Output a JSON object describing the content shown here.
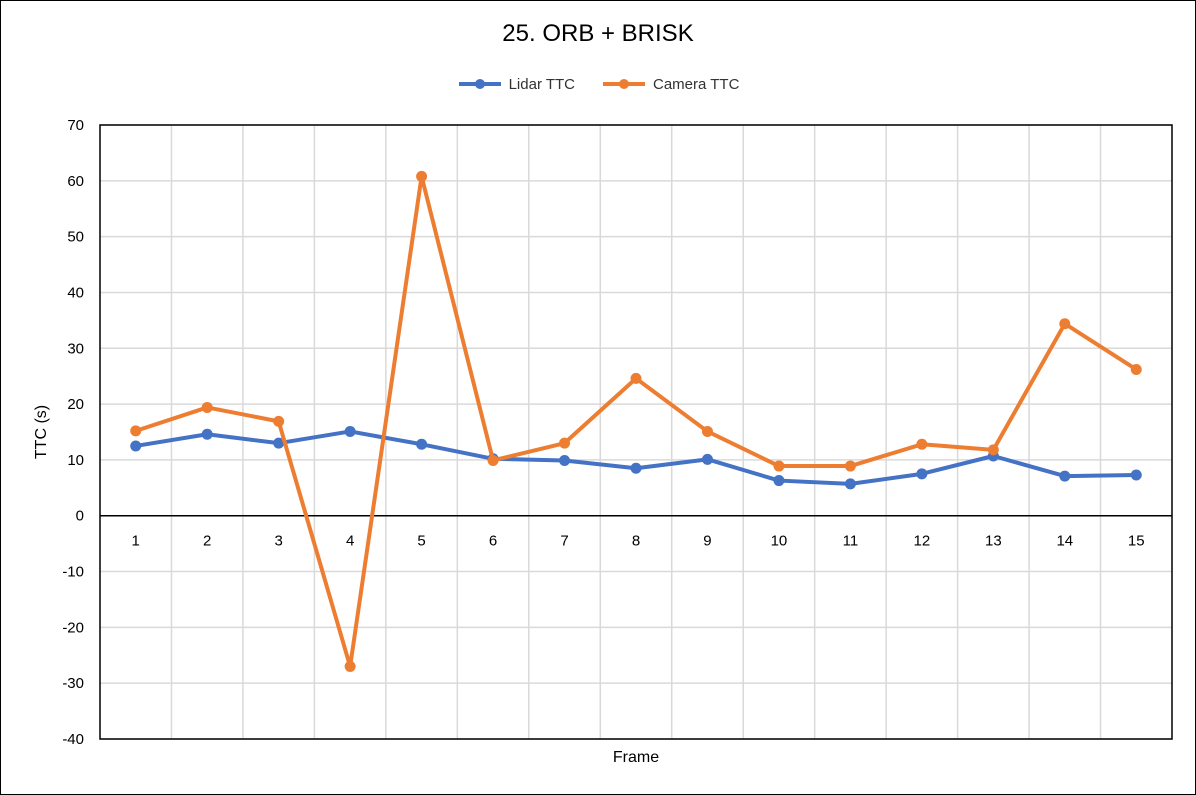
{
  "chart_data": {
    "type": "line",
    "title": "25. ORB + BRISK",
    "xlabel": "Frame",
    "ylabel": "TTC (s)",
    "ylim": [
      -40,
      70
    ],
    "y_ticks": [
      70,
      60,
      50,
      40,
      30,
      20,
      10,
      0,
      -10,
      -20,
      -30,
      -40
    ],
    "categories": [
      "1",
      "2",
      "3",
      "4",
      "5",
      "6",
      "7",
      "8",
      "9",
      "10",
      "11",
      "12",
      "13",
      "14",
      "15"
    ],
    "grid": true,
    "legend_position": "top",
    "series": [
      {
        "name": "Lidar TTC",
        "color": "#4472C4",
        "values": [
          12.5,
          14.6,
          13.0,
          15.1,
          12.8,
          10.2,
          9.9,
          8.5,
          10.1,
          6.3,
          5.7,
          7.5,
          10.7,
          7.1,
          7.3
        ]
      },
      {
        "name": "Camera TTC",
        "color": "#ED7D31",
        "values": [
          15.2,
          19.4,
          16.9,
          -27.0,
          60.8,
          9.9,
          13.0,
          24.6,
          15.1,
          8.9,
          8.9,
          12.8,
          11.8,
          34.4,
          26.2
        ]
      }
    ]
  }
}
